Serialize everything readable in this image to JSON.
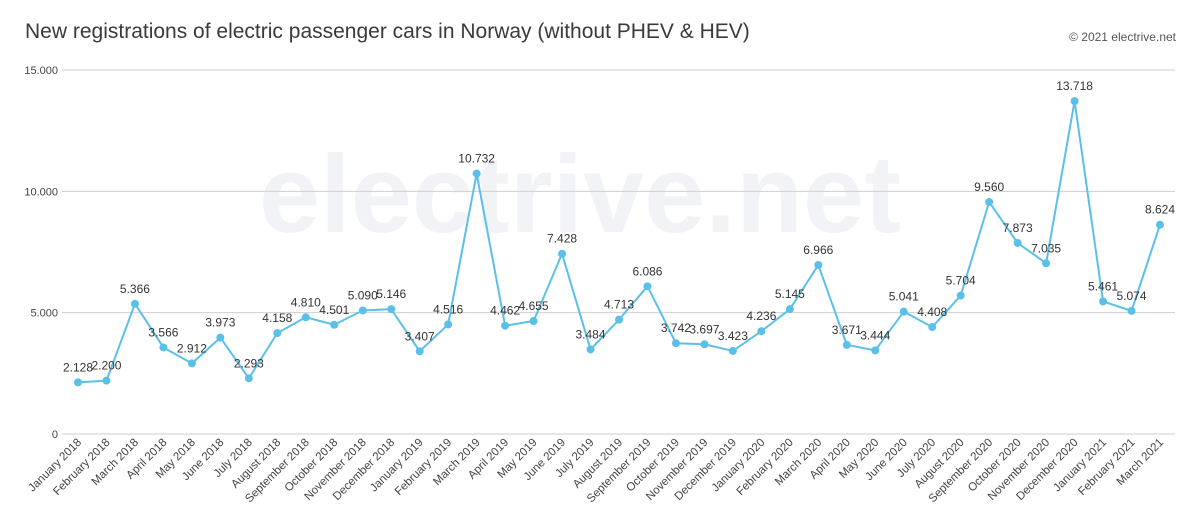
{
  "title": "New registrations of electric passenger cars in Norway (without PHEV & HEV)",
  "credit": "© 2021 electrive.net",
  "watermark": "electrive.net",
  "colors": {
    "line": "#5bc0e8",
    "grid": "#cfcfcf",
    "text": "#3a3a3a"
  },
  "chart_data": {
    "type": "line",
    "title": "New registrations of electric passenger cars in Norway (without PHEV & HEV)",
    "xlabel": "",
    "ylabel": "",
    "ylim": [
      0,
      15000
    ],
    "yticks": [
      0,
      5000,
      10000,
      15000
    ],
    "ytick_labels": [
      "0",
      "5.000",
      "10.000",
      "15.000"
    ],
    "grid": true,
    "legend": "none",
    "categories": [
      "January 2018",
      "February 2018",
      "March 2018",
      "April 2018",
      "May 2018",
      "June 2018",
      "July 2018",
      "August 2018",
      "September 2018",
      "October 2018",
      "November 2018",
      "December 2018",
      "January 2019",
      "February 2019",
      "March 2019",
      "April 2019",
      "May 2019",
      "June 2019",
      "July 2019",
      "August 2019",
      "September 2019",
      "October 2019",
      "November 2019",
      "December 2019",
      "January 2020",
      "February 2020",
      "March 2020",
      "April 2020",
      "May 2020",
      "June 2020",
      "July 2020",
      "August 2020",
      "September 2020",
      "October 2020",
      "November 2020",
      "December 2020",
      "January 2021",
      "February 2021",
      "March 2021"
    ],
    "series": [
      {
        "values": [
          2128,
          2200,
          5366,
          3566,
          2912,
          3973,
          2293,
          4158,
          4810,
          4501,
          5090,
          5146,
          3407,
          4516,
          10732,
          4462,
          4655,
          7428,
          3484,
          4713,
          6086,
          3742,
          3697,
          3423,
          4236,
          5145,
          6966,
          3671,
          3444,
          5041,
          4408,
          5704,
          9560,
          7873,
          7035,
          13718,
          5461,
          5074,
          8624
        ],
        "labels": [
          "2.128",
          "2.200",
          "5.366",
          "3.566",
          "2.912",
          "3.973",
          "2.293",
          "4.158",
          "4.810",
          "4.501",
          "5.090",
          "5.146",
          "3.407",
          "4.516",
          "10.732",
          "4.462",
          "4.655",
          "7.428",
          "3.484",
          "4.713",
          "6.086",
          "3.742",
          "3.697",
          "3.423",
          "4.236",
          "5.145",
          "6.966",
          "3.671",
          "3.444",
          "5.041",
          "4.408",
          "5.704",
          "9.560",
          "7.873",
          "7.035",
          "13.718",
          "5.461",
          "5.074",
          "8.624"
        ]
      }
    ]
  }
}
